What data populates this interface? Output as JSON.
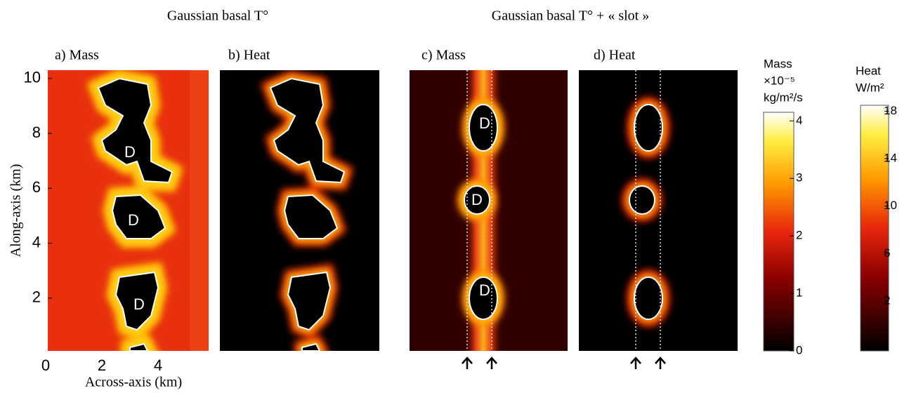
{
  "chart_data": {
    "type": "heatmap",
    "headers": [
      "Gaussian basal T°",
      "Gaussian basal T° + « slot »"
    ],
    "panels": [
      "a) Mass",
      "b) Heat",
      "c) Mass",
      "d) Heat"
    ],
    "dome_label": "D",
    "ylabel": "Along-axis (km)",
    "xlabel": "Across-axis (km)",
    "ylim": [
      0,
      10.2
    ],
    "yticks": [
      2,
      4,
      6,
      8,
      10
    ],
    "xlim": [
      0,
      5.8
    ],
    "xticks": [
      0,
      2,
      4
    ],
    "colorbars": [
      {
        "title": [
          "Mass",
          "×10⁻⁵",
          "kg/m²/s"
        ],
        "ylim": [
          0,
          4.15
        ],
        "yticks": [
          0,
          1,
          2,
          3,
          4
        ]
      },
      {
        "title": [
          "Heat",
          "W/m²"
        ],
        "ylim": [
          -2.2,
          18.5
        ],
        "yticks": [
          2,
          6,
          10,
          14,
          18
        ]
      }
    ]
  }
}
